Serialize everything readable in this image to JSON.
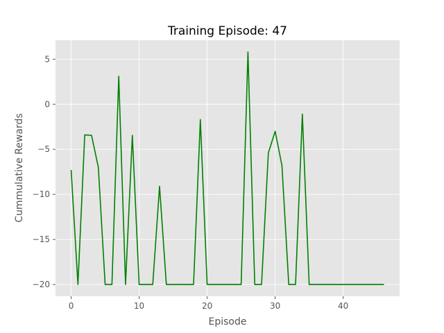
{
  "chart_data": {
    "type": "line",
    "title": "Training Episode: 47",
    "xlabel": "Episode",
    "ylabel": "Cummulative Rewards",
    "xlim": [
      -2.3,
      48.3
    ],
    "ylim": [
      -21.3,
      7.1
    ],
    "xticks": [
      0,
      10,
      20,
      30,
      40
    ],
    "yticks": [
      5,
      0,
      -5,
      -10,
      -15,
      -20
    ],
    "grid": true,
    "style": "ggplot",
    "colors": {
      "line": "#008000",
      "background": "#e5e5e5",
      "grid": "#ffffff",
      "tick": "#555555"
    },
    "series": [
      {
        "x": [
          0,
          1,
          2,
          3,
          4,
          5,
          6,
          7,
          8,
          9,
          10,
          11,
          12,
          13,
          14,
          15,
          16,
          17,
          18,
          19,
          20,
          21,
          22,
          23,
          24,
          25,
          26,
          27,
          28,
          29,
          30,
          31,
          32,
          33,
          34,
          35,
          36,
          37,
          38,
          39,
          40,
          41,
          42,
          43,
          44,
          45,
          46
        ],
        "values": [
          -7.3,
          -20,
          -3.4,
          -3.45,
          -7,
          -20,
          -20,
          3.1,
          -20,
          -3.45,
          -20,
          -20,
          -20,
          -9.1,
          -20,
          -20,
          -20,
          -20,
          -20,
          -1.7,
          -20,
          -20,
          -20,
          -20,
          -20,
          -20,
          5.8,
          -20,
          -20,
          -5.4,
          -3,
          -6.8,
          -20,
          -20,
          -1.1,
          -20,
          -20,
          -20,
          -20,
          -20,
          -20,
          -20,
          -20,
          -20,
          -20,
          -20,
          -20
        ]
      }
    ]
  }
}
